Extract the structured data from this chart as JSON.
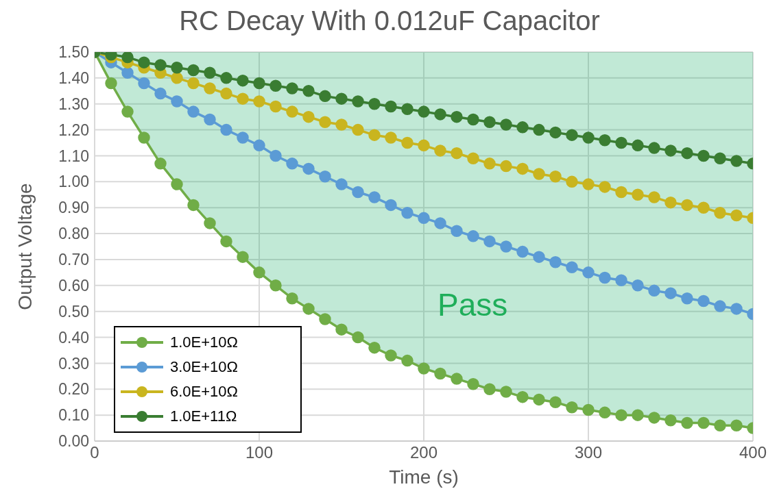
{
  "chart_data": {
    "type": "line",
    "title": "RC Decay With 0.012uF Capacitor",
    "xlabel": "Time (s)",
    "ylabel": "Output Voltage",
    "x": [
      0,
      10,
      20,
      30,
      40,
      50,
      60,
      70,
      80,
      90,
      100,
      110,
      120,
      130,
      140,
      150,
      160,
      170,
      180,
      190,
      200,
      210,
      220,
      230,
      240,
      250,
      260,
      270,
      280,
      290,
      300,
      310,
      320,
      330,
      340,
      350,
      360,
      370,
      380,
      390,
      400
    ],
    "series": [
      {
        "name": "1.0E+10Ω",
        "color": "#70ad47",
        "values": [
          1.5,
          1.38,
          1.27,
          1.17,
          1.07,
          0.99,
          0.91,
          0.84,
          0.77,
          0.71,
          0.65,
          0.6,
          0.55,
          0.51,
          0.47,
          0.43,
          0.4,
          0.36,
          0.33,
          0.31,
          0.28,
          0.26,
          0.24,
          0.22,
          0.2,
          0.19,
          0.17,
          0.16,
          0.15,
          0.13,
          0.12,
          0.11,
          0.1,
          0.1,
          0.09,
          0.08,
          0.07,
          0.07,
          0.06,
          0.06,
          0.05
        ],
        "lower": [
          1.5,
          1.38,
          1.27,
          1.17,
          1.07,
          0.99,
          0.91,
          0.84,
          0.77,
          0.71,
          0.65,
          0.6,
          0.55,
          0.51,
          0.47,
          0.43,
          0.4,
          0.36,
          0.33,
          0.31,
          0.28,
          0.26,
          0.24,
          0.22,
          0.2,
          0.19,
          0.17,
          0.16,
          0.15,
          0.13,
          0.12,
          0.11,
          0.1,
          0.1,
          0.09,
          0.08,
          0.07,
          0.07,
          0.06,
          0.06,
          0.05
        ],
        "upper": [
          1.5,
          1.5,
          1.5,
          1.5,
          1.5,
          1.5,
          1.5,
          1.5,
          1.5,
          1.5,
          1.5,
          1.5,
          1.5,
          1.5,
          1.5,
          1.5,
          1.5,
          1.5,
          1.5,
          1.5,
          1.5,
          1.5,
          1.5,
          1.5,
          1.5,
          1.5,
          1.5,
          1.5,
          1.5,
          1.5,
          1.5,
          1.5,
          1.5,
          1.5,
          1.5,
          1.5,
          1.5,
          1.5,
          1.5,
          1.5,
          1.5
        ]
      },
      {
        "name": "3.0E+10Ω",
        "color": "#5b9bd5",
        "values": [
          1.5,
          1.46,
          1.42,
          1.38,
          1.34,
          1.31,
          1.27,
          1.24,
          1.2,
          1.17,
          1.14,
          1.1,
          1.07,
          1.05,
          1.02,
          0.99,
          0.96,
          0.94,
          0.91,
          0.88,
          0.86,
          0.84,
          0.81,
          0.79,
          0.77,
          0.75,
          0.73,
          0.71,
          0.69,
          0.67,
          0.65,
          0.63,
          0.62,
          0.6,
          0.58,
          0.57,
          0.55,
          0.54,
          0.52,
          0.51,
          0.49
        ]
      },
      {
        "name": "6.0E+10Ω",
        "color": "#c9b51f",
        "values": [
          1.5,
          1.48,
          1.46,
          1.44,
          1.42,
          1.4,
          1.38,
          1.36,
          1.34,
          1.32,
          1.31,
          1.29,
          1.27,
          1.25,
          1.23,
          1.22,
          1.2,
          1.18,
          1.17,
          1.15,
          1.14,
          1.12,
          1.11,
          1.09,
          1.07,
          1.06,
          1.05,
          1.03,
          1.02,
          1.0,
          0.99,
          0.98,
          0.96,
          0.95,
          0.94,
          0.92,
          0.91,
          0.9,
          0.88,
          0.87,
          0.86
        ]
      },
      {
        "name": "1.0E+11Ω",
        "color": "#3a7d32",
        "values": [
          1.5,
          1.49,
          1.48,
          1.46,
          1.45,
          1.44,
          1.43,
          1.42,
          1.4,
          1.39,
          1.38,
          1.37,
          1.36,
          1.35,
          1.33,
          1.32,
          1.31,
          1.3,
          1.29,
          1.28,
          1.27,
          1.26,
          1.25,
          1.24,
          1.23,
          1.22,
          1.21,
          1.2,
          1.19,
          1.18,
          1.17,
          1.16,
          1.15,
          1.14,
          1.13,
          1.12,
          1.11,
          1.1,
          1.09,
          1.08,
          1.07
        ]
      }
    ],
    "xlim": [
      0,
      400
    ],
    "xticks": [
      0,
      100,
      200,
      300,
      400
    ],
    "ylim": [
      0,
      1.5
    ],
    "yticks": [
      {
        "value": 0,
        "label": "0.00"
      },
      {
        "value": 0.1,
        "label": "0.10"
      },
      {
        "value": 0.2,
        "label": "0.20"
      },
      {
        "value": 0.3,
        "label": "0.30"
      },
      {
        "value": 0.4,
        "label": "0.40"
      },
      {
        "value": 0.5,
        "label": "0.50"
      },
      {
        "value": 0.6,
        "label": "0.60"
      },
      {
        "value": 0.7,
        "label": "0.70"
      },
      {
        "value": 0.8,
        "label": "0.80"
      },
      {
        "value": 0.9,
        "label": "0.90"
      },
      {
        "value": 1.0,
        "label": "1.00"
      },
      {
        "value": 1.1,
        "label": "1.10"
      },
      {
        "value": 1.2,
        "label": "1.20"
      },
      {
        "value": 1.3,
        "label": "1.30"
      },
      {
        "value": 1.4,
        "label": "1.40"
      },
      {
        "value": 1.5,
        "label": "1.50"
      }
    ],
    "annotations": [
      "Pass"
    ],
    "grid": true,
    "legend": "bottom left",
    "marker": "circle",
    "line_style": "solid"
  }
}
